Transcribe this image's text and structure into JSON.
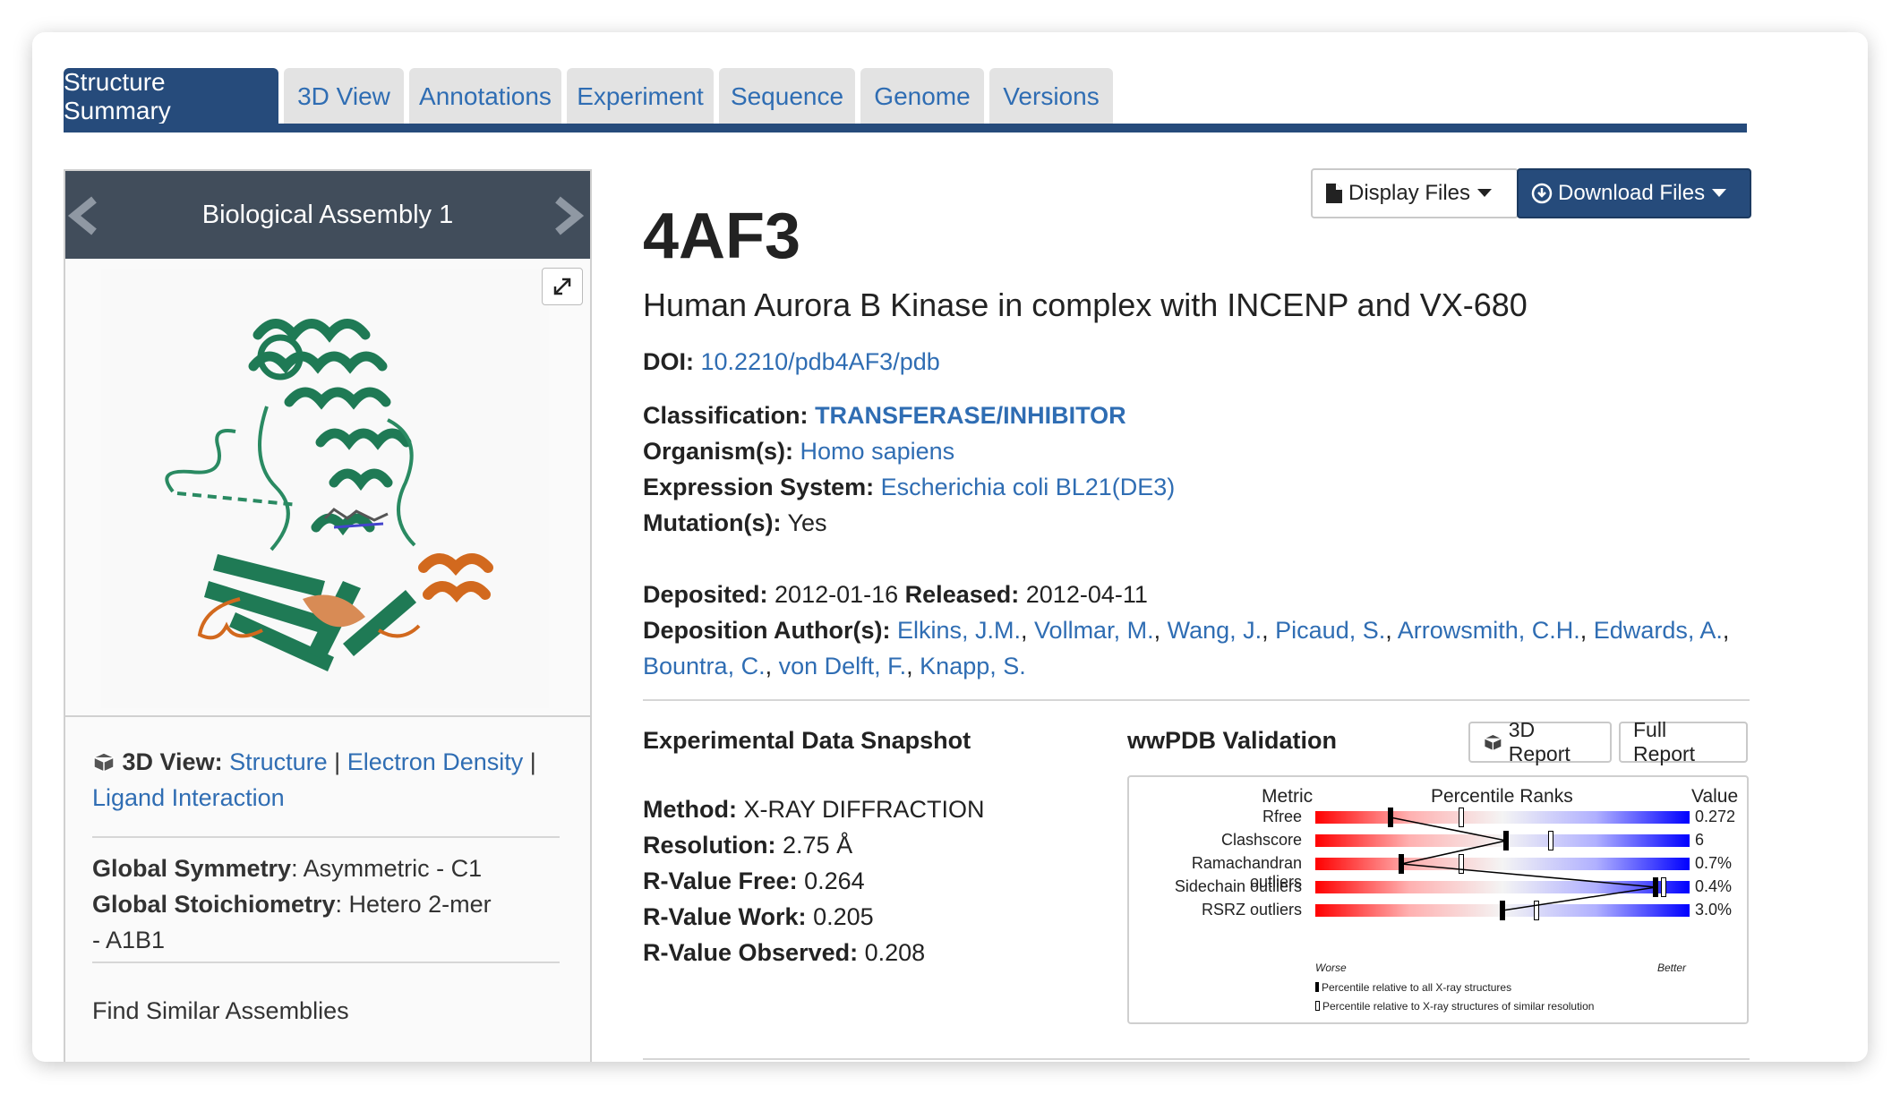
{
  "tabs": [
    {
      "label": "Structure Summary",
      "active": true
    },
    {
      "label": "3D View",
      "active": false
    },
    {
      "label": "Annotations",
      "active": false
    },
    {
      "label": "Experiment",
      "active": false
    },
    {
      "label": "Sequence",
      "active": false
    },
    {
      "label": "Genome",
      "active": false
    },
    {
      "label": "Versions",
      "active": false
    }
  ],
  "assembly": {
    "title": "Biological Assembly 1"
  },
  "view3d": {
    "label": "3D View:",
    "structure": "Structure",
    "sep": "|",
    "density": "Electron Density",
    "ligand": "Ligand Interaction"
  },
  "symmetry": {
    "label": "Global Symmetry",
    "value": ": Asymmetric - C1",
    "stoich_label": "Global Stoichiometry",
    "stoich_value": ": Hetero 2-mer",
    "stoich_value2": "- A1B1"
  },
  "find_similar": "Find Similar Assemblies",
  "buttons": {
    "display": "Display Files",
    "download": "Download Files"
  },
  "entry": {
    "id": "4AF3",
    "title": "Human Aurora B Kinase in complex with INCENP and VX-680",
    "doi_label": "DOI:",
    "doi": "10.2210/pdb4AF3/pdb",
    "classification_label": "Classification:",
    "classification": "TRANSFERASE/INHIBITOR",
    "organism_label": "Organism(s):",
    "organism": "Homo sapiens",
    "expression_label": "Expression System:",
    "expression": "Escherichia coli BL21(DE3)",
    "mutation_label": "Mutation(s):",
    "mutation": "Yes",
    "deposited_label": "Deposited:",
    "deposited": "2012-01-16",
    "released_label": "Released:",
    "released": "2012-04-11",
    "authors_label": "Deposition Author(s):",
    "authors": [
      "Elkins, J.M.",
      "Vollmar, M.",
      "Wang, J.",
      "Picaud, S.",
      "Arrowsmith, C.H.",
      "Edwards, A.",
      "Bountra, C.",
      "von Delft, F.",
      "Knapp, S."
    ]
  },
  "snapshot": {
    "title": "Experimental Data Snapshot",
    "method_label": "Method:",
    "method": "X-RAY DIFFRACTION",
    "resolution_label": "Resolution:",
    "resolution": "2.75 Å",
    "rfree_label": "R-Value Free:",
    "rfree": "0.264",
    "rwork_label": "R-Value Work:",
    "rwork": "0.205",
    "robs_label": "R-Value Observed:",
    "robs": "0.208"
  },
  "validation": {
    "title": "wwPDB Validation",
    "report3d": "3D Report",
    "full": "Full Report",
    "head_metric": "Metric",
    "head_pct": "Percentile Ranks",
    "head_value": "Value",
    "worse": "Worse",
    "better": "Better",
    "legend_all": "Percentile relative to all X-ray structures",
    "legend_sim": "Percentile relative to X-ray structures of similar resolution",
    "metrics": [
      {
        "name": "Rfree",
        "value": "0.272",
        "pct_all": 20,
        "pct_sim": 39
      },
      {
        "name": "Clashscore",
        "value": "6",
        "pct_all": 51,
        "pct_sim": 63
      },
      {
        "name": "Ramachandran outliers",
        "value": "0.7%",
        "pct_all": 23,
        "pct_sim": 39
      },
      {
        "name": "Sidechain outliers",
        "value": "0.4%",
        "pct_all": 91,
        "pct_sim": 93
      },
      {
        "name": "RSRZ outliers",
        "value": "3.0%",
        "pct_all": 50,
        "pct_sim": 59
      }
    ]
  },
  "colors": {
    "nav": "#264b7b",
    "link": "#2f6db3",
    "panel_head": "#414d5b"
  }
}
